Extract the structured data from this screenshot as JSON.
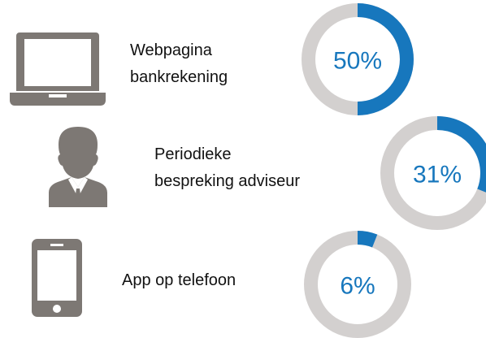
{
  "chart_data": {
    "type": "donut",
    "categories": [
      "Webpagina\nbankrekening",
      "Periodieke\nbespreking adviseur",
      "App op telefoon"
    ],
    "values": [
      50,
      31,
      6
    ],
    "value_labels": [
      "50%",
      "31%",
      "6%"
    ],
    "color": "#1777bd",
    "track_color": "#d3d0cf"
  }
}
